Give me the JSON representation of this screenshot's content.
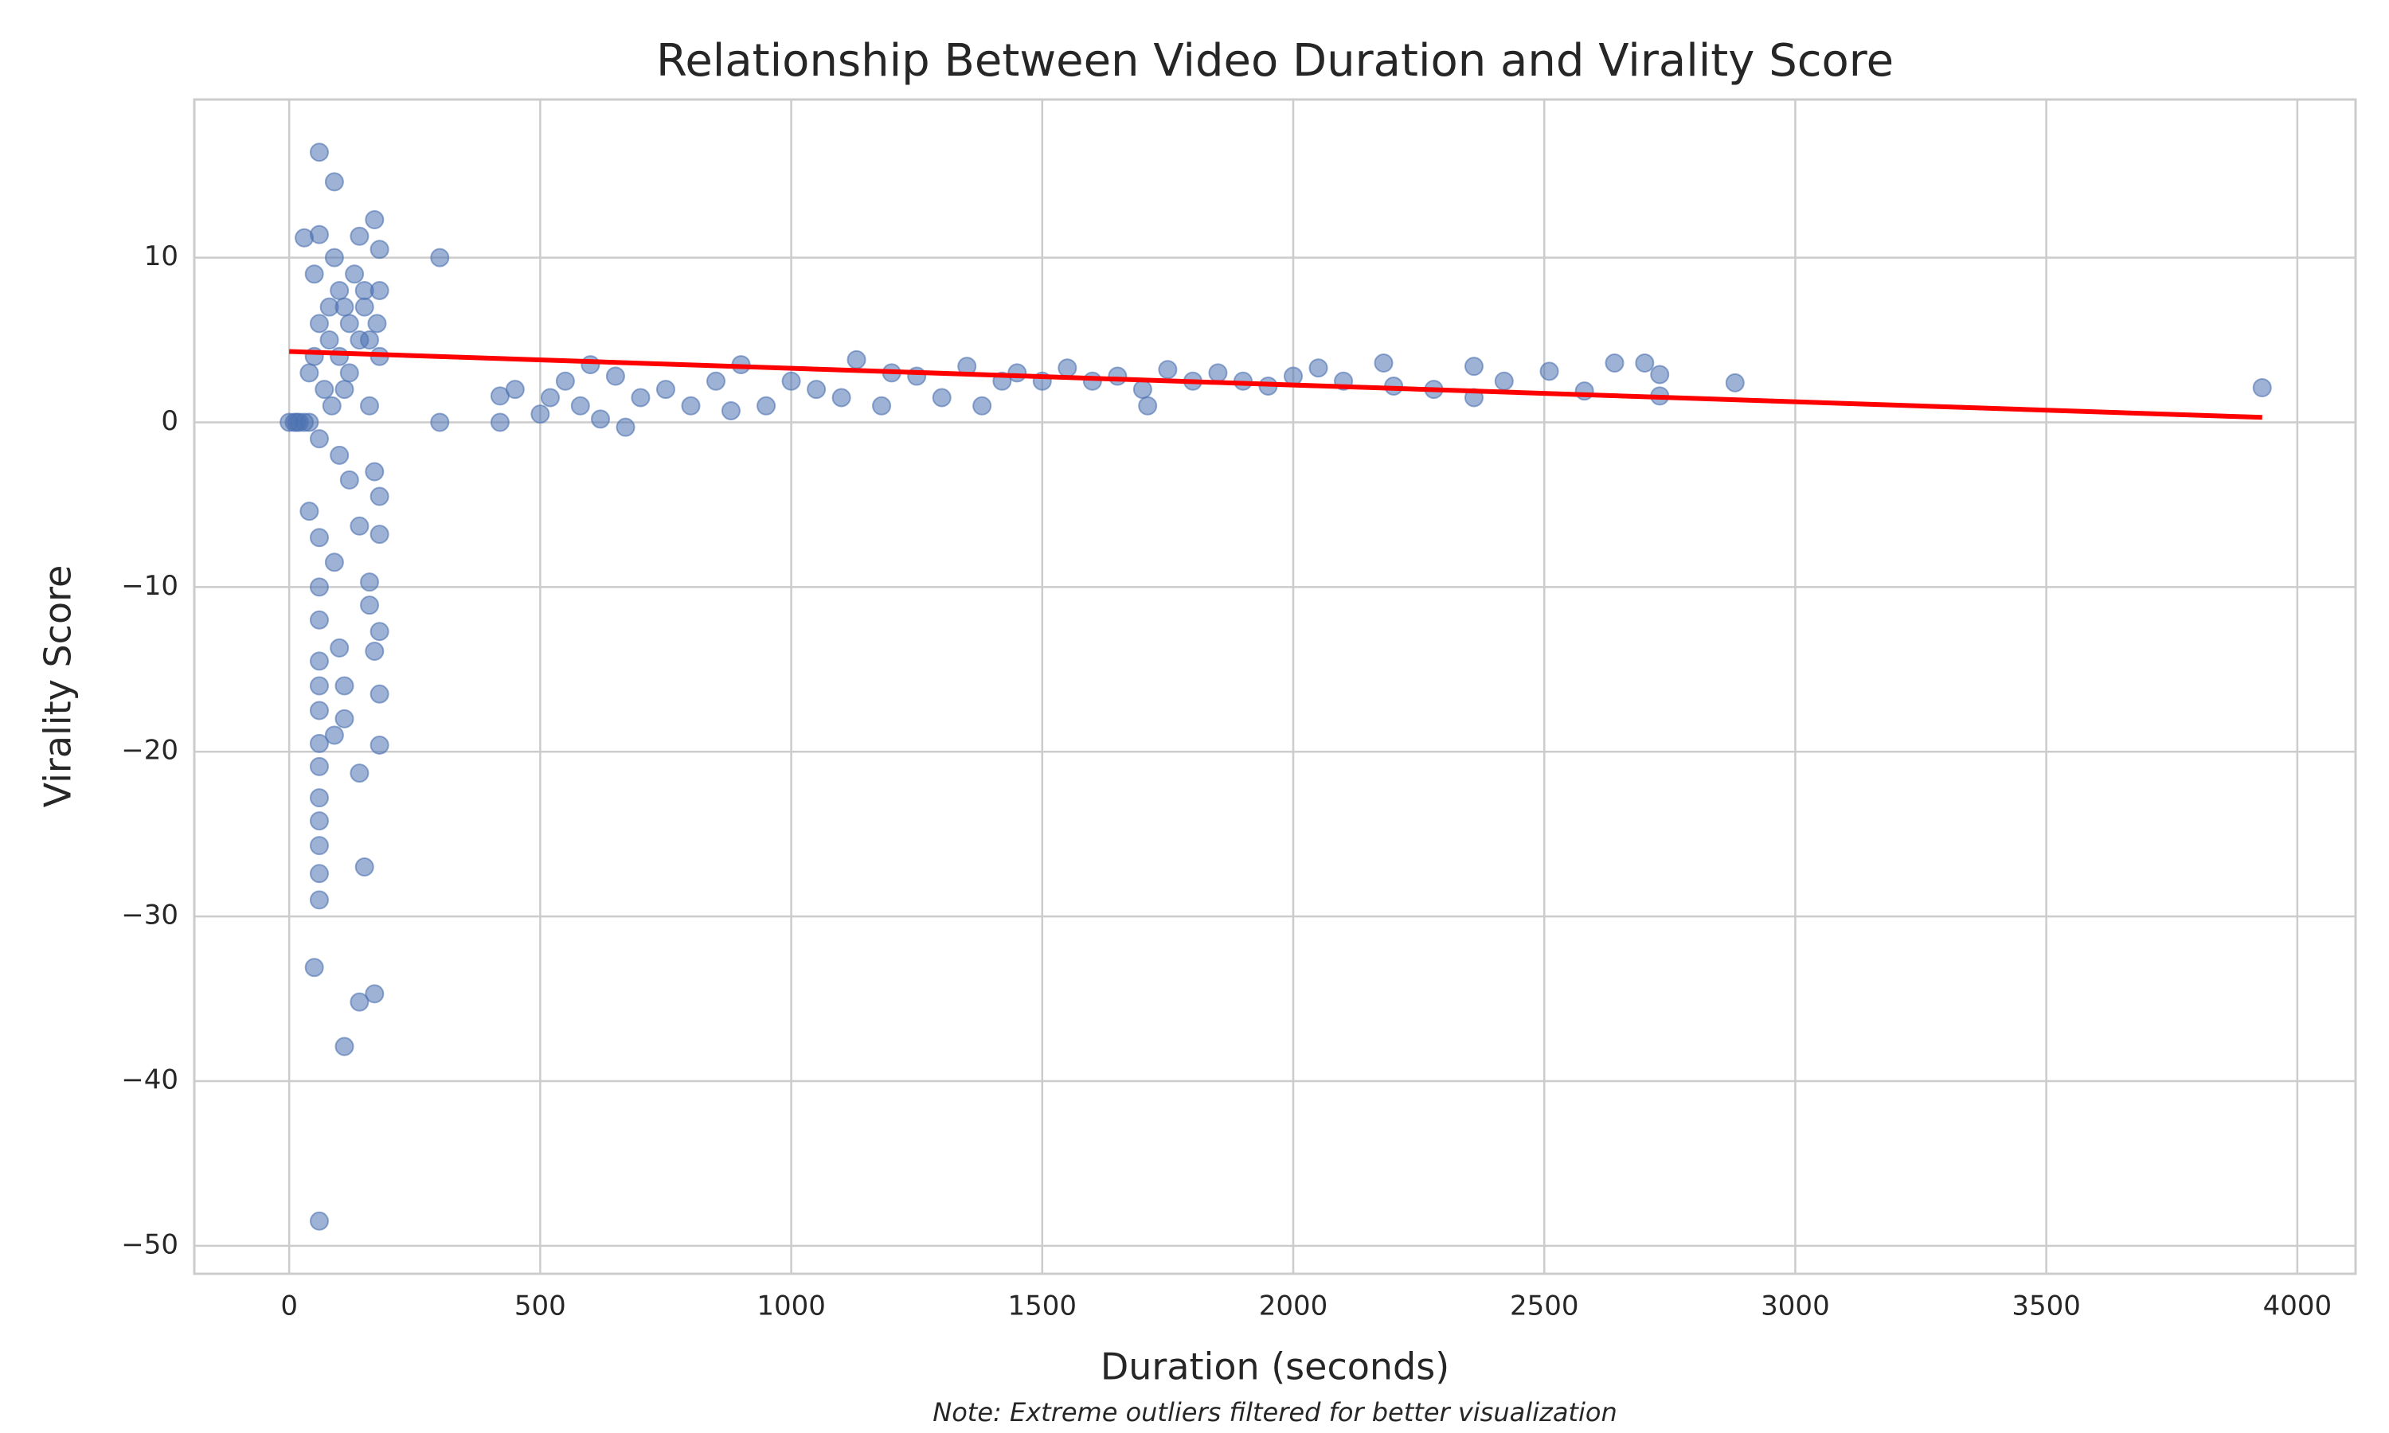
{
  "chart_data": {
    "type": "scatter",
    "title": "Relationship Between Video Duration and Virality Score",
    "xlabel": "Duration (seconds)",
    "ylabel": "Virality Score",
    "note": "Note: Extreme outliers filtered for better visualization",
    "color": "#4c72b0",
    "x": [
      0,
      10,
      20,
      30,
      40,
      15,
      60,
      90,
      170,
      30,
      60,
      140,
      180,
      50,
      100,
      150,
      120,
      80,
      180,
      40,
      110,
      160,
      60,
      100,
      170,
      120,
      180,
      40,
      140,
      180,
      60,
      90,
      160,
      60,
      60,
      160,
      180,
      100,
      170,
      60,
      60,
      180,
      110,
      60,
      110,
      90,
      60,
      180,
      60,
      140,
      60,
      60,
      60,
      60,
      150,
      60,
      50,
      170,
      140,
      110,
      60,
      60,
      80,
      100,
      130,
      160,
      180,
      70,
      90,
      120,
      150,
      175,
      50,
      140,
      110,
      85,
      300,
      300,
      420,
      420,
      450,
      500,
      520,
      550,
      580,
      600,
      620,
      650,
      670,
      700,
      750,
      800,
      850,
      880,
      900,
      950,
      1000,
      1050,
      1100,
      1130,
      1180,
      1200,
      1250,
      1300,
      1350,
      1380,
      1420,
      1450,
      1500,
      1550,
      1600,
      1650,
      1700,
      1710,
      1750,
      1800,
      1850,
      1900,
      1950,
      2000,
      2050,
      2100,
      2180,
      2200,
      2280,
      2360,
      2360,
      2420,
      2510,
      2580,
      2640,
      2700,
      2730,
      2730,
      2880,
      3930
    ],
    "values": [
      0,
      0,
      0,
      0,
      0,
      0,
      16.4,
      14.6,
      12.3,
      11.2,
      11.4,
      11.3,
      10.5,
      9,
      8,
      7,
      6,
      5,
      4,
      3,
      2,
      1,
      -1,
      -2,
      -3,
      -3.5,
      -4.5,
      -5.4,
      -6.3,
      -6.8,
      -7,
      -8.5,
      -9.7,
      -10,
      -12,
      -11.1,
      -12.7,
      -13.7,
      -13.9,
      -14.5,
      -16,
      -16.5,
      -16,
      -17.5,
      -18,
      -19,
      -19.5,
      -19.6,
      -20.9,
      -21.3,
      -22.8,
      -24.2,
      -25.7,
      -27.4,
      -27,
      -29,
      -33.1,
      -34.7,
      -35.2,
      -37.9,
      -48.5,
      6,
      7,
      4,
      9,
      5,
      8,
      2,
      10,
      3,
      8,
      6,
      4,
      5,
      7,
      1,
      10,
      0,
      0,
      1.6,
      2,
      0.5,
      1.5,
      2.5,
      1,
      3.5,
      0.2,
      2.8,
      -0.3,
      1.5,
      2,
      1,
      2.5,
      0.7,
      3.5,
      1,
      2.5,
      2,
      1.5,
      3.8,
      1,
      3,
      2.8,
      1.5,
      3.4,
      1,
      2.5,
      3,
      2.5,
      3.3,
      2.5,
      2.8,
      2,
      1,
      3.2,
      2.5,
      3,
      2.5,
      2.2,
      2.8,
      3.3,
      2.5,
      3.6,
      2.2,
      2,
      3.4,
      1.5,
      2.5,
      3.1,
      1.9,
      3.6,
      3.6,
      1.6,
      2.9,
      2.4,
      2.1
    ],
    "trend": {
      "x": [
        0,
        3930
      ],
      "values": [
        4.3,
        0.3
      ],
      "color": "#ff0000"
    },
    "xlim": [
      -189,
      4116
    ],
    "ylim": [
      -51.7,
      19.6
    ],
    "xticks": [
      0,
      500,
      1000,
      1500,
      2000,
      2500,
      3000,
      3500,
      4000
    ],
    "yticks": [
      {
        "value": -50,
        "label": "−50"
      },
      {
        "value": -40,
        "label": "−40"
      },
      {
        "value": -30,
        "label": "−30"
      },
      {
        "value": -20,
        "label": "−20"
      },
      {
        "value": -10,
        "label": "−10"
      },
      0,
      10
    ],
    "grid": true
  }
}
